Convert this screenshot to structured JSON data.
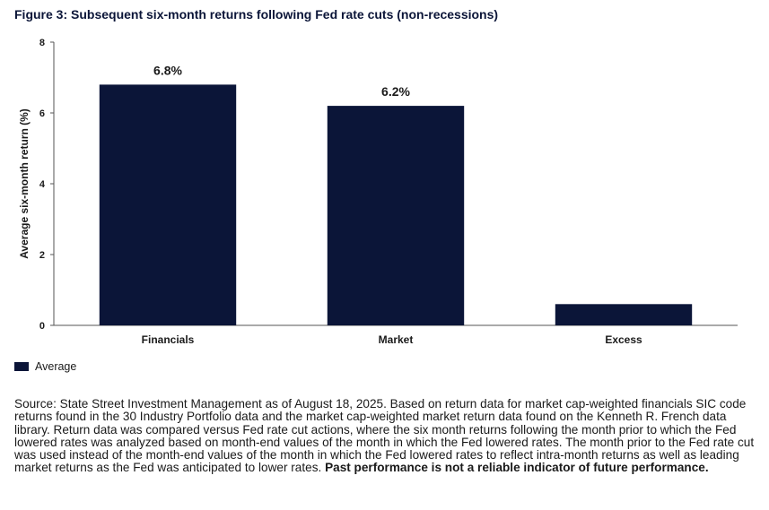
{
  "figure": {
    "title": "Figure 3: Subsequent six-month returns following Fed rate cuts (non-recessions)"
  },
  "chart_data": {
    "type": "bar",
    "title": "Figure 3: Subsequent six-month returns following Fed rate cuts (non-recessions)",
    "xlabel": "",
    "ylabel": "Average six-month return (%)",
    "categories": [
      "Financials",
      "Market",
      "Excess"
    ],
    "series": [
      {
        "name": "Average",
        "values": [
          6.8,
          6.2,
          0.6
        ],
        "data_labels": [
          "6.8%",
          "6.2%",
          ""
        ]
      }
    ],
    "ylim": [
      0,
      8
    ],
    "yticks": [
      0,
      2,
      4,
      6,
      8
    ],
    "grid": false,
    "legend": "bottom-left",
    "bar_color": "#0b1538"
  },
  "legend": {
    "label": "Average"
  },
  "source": {
    "text": "Source: State Street Investment Management as of August 18, 2025. Based on return data for market cap-weighted financials SIC code returns found in the 30 Industry Portfolio data and the market cap-weighted market return data found on the Kenneth R. French data library. Return data was compared versus Fed rate cut actions, where the six month returns following the month prior to which the Fed lowered rates was analyzed based on month-end values of the month in which the Fed lowered rates. The month prior to the Fed rate cut was used instead of the month-end values of the month in which the Fed lowered rates to reflect intra-month returns as well as leading market returns as the Fed was anticipated to lower rates.",
    "disclaimer": "Past performance is not a reliable indicator of future performance."
  }
}
